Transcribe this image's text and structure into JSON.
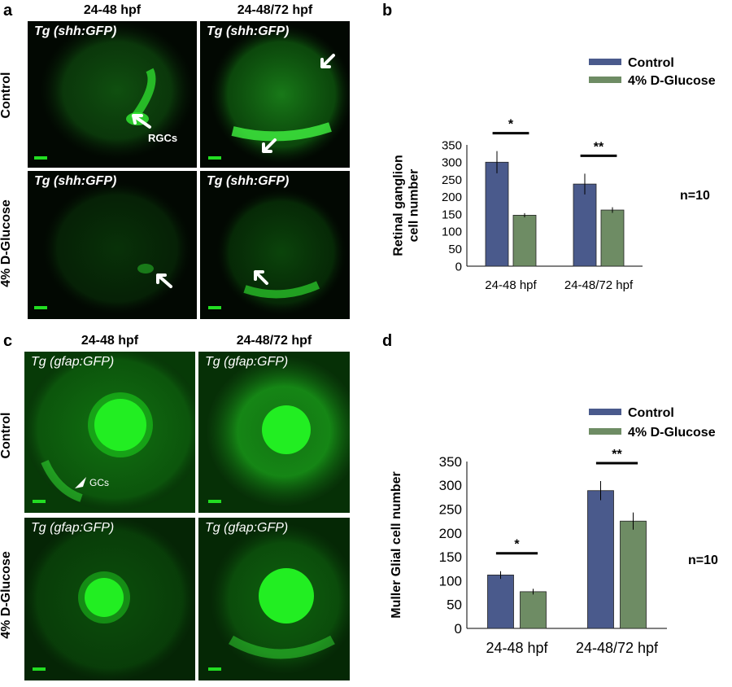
{
  "panel_a": {
    "letter": "a",
    "col_headers": [
      "24-48 hpf",
      "24-48/72 hpf"
    ],
    "row_headers": [
      "Control",
      "4% D-Glucose"
    ],
    "transgene": "Tg (shh:GFP)",
    "annotation": "RGCs"
  },
  "panel_c": {
    "letter": "c",
    "col_headers": [
      "24-48 hpf",
      "24-48/72 hpf"
    ],
    "row_headers": [
      "Control",
      "4% D-Glucose"
    ],
    "transgene": "Tg (gfap:GFP)",
    "annotation": "GCs"
  },
  "colors": {
    "control": "#4a5a8c",
    "glucose": "#6e8c64",
    "gfp": "#22dd22"
  },
  "chart_data": [
    {
      "panel": "b",
      "type": "bar",
      "categories": [
        "24-48 hpf",
        "24-48/72 hpf"
      ],
      "series": [
        {
          "name": "Control",
          "values": [
            300,
            237
          ],
          "errors": [
            32,
            30
          ]
        },
        {
          "name": "4% D-Glucose",
          "values": [
            147,
            162
          ],
          "errors": [
            6,
            8
          ]
        }
      ],
      "significance": [
        "*",
        "**"
      ],
      "ylabel_line1": "Retinal ganglion",
      "ylabel_line2": "cell number",
      "ylim": [
        0,
        350
      ],
      "yticks": [
        0,
        50,
        100,
        150,
        200,
        250,
        300,
        350
      ],
      "legend_position": "top-right",
      "annotation": "n=10"
    },
    {
      "panel": "d",
      "type": "bar",
      "categories": [
        "24-48 hpf",
        "24-48/72 hpf"
      ],
      "series": [
        {
          "name": "Control",
          "values": [
            112,
            289
          ],
          "errors": [
            8,
            20
          ]
        },
        {
          "name": "4% D-Glucose",
          "values": [
            77,
            225
          ],
          "errors": [
            6,
            18
          ]
        }
      ],
      "significance": [
        "*",
        "**"
      ],
      "ylabel": "Muller Glial cell number",
      "ylim": [
        0,
        350
      ],
      "yticks": [
        0,
        50,
        100,
        150,
        200,
        250,
        300,
        350
      ],
      "legend_position": "top-right",
      "annotation": "n=10"
    }
  ]
}
